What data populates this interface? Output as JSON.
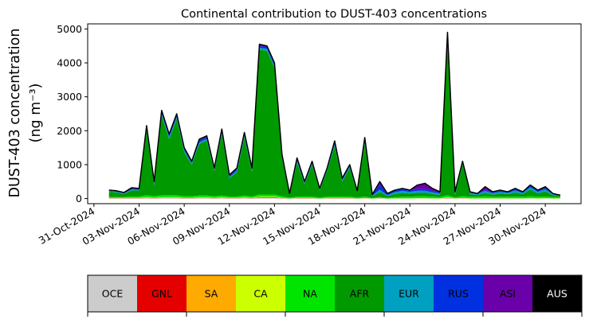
{
  "chart_data": {
    "type": "area",
    "title": "Continental contribution to DUST-403 concentrations",
    "ylabel_line1": "DUST-403 concentration",
    "ylabel_line2": "(ng m⁻³)",
    "xlabel": "",
    "ylim": [
      -150,
      5150
    ],
    "xlim": [
      "2024-10-30T14:00",
      "2024-12-02T09:00"
    ],
    "grid": false,
    "y_ticks": [
      0,
      1000,
      2000,
      3000,
      4000,
      5000
    ],
    "x_ticks": [
      "31-Oct-2024",
      "03-Nov-2024",
      "06-Nov-2024",
      "09-Nov-2024",
      "12-Nov-2024",
      "15-Nov-2024",
      "18-Nov-2024",
      "21-Nov-2024",
      "24-Nov-2024",
      "27-Nov-2024",
      "30-Nov-2024"
    ],
    "x": [
      "2024-11-01T00:00",
      "2024-11-01T12:00",
      "2024-11-02T00:00",
      "2024-11-02T12:00",
      "2024-11-03T00:00",
      "2024-11-03T12:00",
      "2024-11-04T00:00",
      "2024-11-04T12:00",
      "2024-11-05T00:00",
      "2024-11-05T12:00",
      "2024-11-06T00:00",
      "2024-11-06T12:00",
      "2024-11-07T00:00",
      "2024-11-07T12:00",
      "2024-11-08T00:00",
      "2024-11-08T12:00",
      "2024-11-09T00:00",
      "2024-11-09T12:00",
      "2024-11-10T00:00",
      "2024-11-10T12:00",
      "2024-11-11T00:00",
      "2024-11-11T12:00",
      "2024-11-12T00:00",
      "2024-11-12T12:00",
      "2024-11-13T00:00",
      "2024-11-13T12:00",
      "2024-11-14T00:00",
      "2024-11-14T12:00",
      "2024-11-15T00:00",
      "2024-11-15T12:00",
      "2024-11-16T00:00",
      "2024-11-16T12:00",
      "2024-11-17T00:00",
      "2024-11-17T12:00",
      "2024-11-18T00:00",
      "2024-11-18T12:00",
      "2024-11-19T00:00",
      "2024-11-19T12:00",
      "2024-11-20T00:00",
      "2024-11-20T12:00",
      "2024-11-21T00:00",
      "2024-11-21T12:00",
      "2024-11-22T00:00",
      "2024-11-22T12:00",
      "2024-11-23T00:00",
      "2024-11-23T12:00",
      "2024-11-24T00:00",
      "2024-11-24T12:00",
      "2024-11-25T00:00",
      "2024-11-25T12:00",
      "2024-11-26T00:00",
      "2024-11-26T12:00",
      "2024-11-27T00:00",
      "2024-11-27T12:00",
      "2024-11-28T00:00",
      "2024-11-28T12:00",
      "2024-11-29T00:00",
      "2024-11-29T12:00",
      "2024-11-30T00:00",
      "2024-11-30T12:00",
      "2024-12-01T00:00"
    ],
    "total": [
      250,
      230,
      180,
      320,
      300,
      2150,
      500,
      2600,
      1900,
      2500,
      1500,
      1100,
      1750,
      1850,
      900,
      2050,
      700,
      900,
      1950,
      900,
      4550,
      4500,
      4000,
      1300,
      150,
      1200,
      500,
      1100,
      300,
      900,
      1700,
      600,
      1000,
      230,
      1800,
      120,
      500,
      150,
      250,
      300,
      250,
      400,
      450,
      300,
      200,
      4900,
      200,
      1100,
      200,
      150,
      350,
      200,
      250,
      200,
      300,
      200,
      400,
      250,
      350,
      150,
      100
    ],
    "series": [
      {
        "name": "OCE",
        "color": "#cccccc",
        "values": [
          5,
          5,
          5,
          5,
          5,
          10,
          5,
          10,
          10,
          10,
          5,
          5,
          10,
          10,
          5,
          10,
          5,
          5,
          10,
          5,
          15,
          15,
          15,
          5,
          0,
          5,
          5,
          5,
          0,
          5,
          5,
          5,
          5,
          0,
          5,
          0,
          5,
          0,
          0,
          0,
          0,
          5,
          5,
          0,
          0,
          10,
          0,
          5,
          0,
          0,
          0,
          0,
          0,
          0,
          0,
          0,
          5,
          0,
          5,
          0,
          0
        ]
      },
      {
        "name": "GNL",
        "color": "#e50000",
        "values": [
          5,
          5,
          5,
          5,
          5,
          10,
          5,
          10,
          10,
          10,
          5,
          5,
          10,
          10,
          5,
          10,
          5,
          5,
          10,
          5,
          15,
          15,
          15,
          5,
          0,
          5,
          5,
          5,
          0,
          5,
          5,
          5,
          5,
          0,
          5,
          0,
          5,
          0,
          0,
          0,
          0,
          0,
          0,
          0,
          0,
          10,
          0,
          5,
          0,
          0,
          0,
          0,
          0,
          0,
          0,
          0,
          0,
          0,
          0,
          0,
          0
        ]
      },
      {
        "name": "SA",
        "color": "#ffaa00",
        "values": [
          5,
          5,
          5,
          5,
          5,
          10,
          5,
          10,
          10,
          10,
          5,
          5,
          10,
          10,
          5,
          10,
          5,
          5,
          10,
          5,
          15,
          15,
          15,
          5,
          0,
          5,
          5,
          5,
          0,
          5,
          5,
          5,
          5,
          0,
          5,
          0,
          5,
          0,
          0,
          0,
          0,
          0,
          0,
          0,
          0,
          10,
          0,
          5,
          0,
          0,
          0,
          0,
          0,
          0,
          0,
          0,
          0,
          0,
          0,
          0,
          0
        ]
      },
      {
        "name": "CA",
        "color": "#ccff00",
        "values": [
          5,
          5,
          5,
          5,
          5,
          10,
          5,
          10,
          10,
          10,
          5,
          5,
          10,
          10,
          5,
          10,
          5,
          5,
          10,
          5,
          15,
          15,
          15,
          5,
          0,
          5,
          5,
          5,
          0,
          5,
          5,
          5,
          5,
          0,
          5,
          0,
          5,
          0,
          5,
          5,
          5,
          5,
          5,
          5,
          5,
          10,
          5,
          5,
          5,
          5,
          5,
          5,
          5,
          5,
          5,
          5,
          5,
          5,
          5,
          5,
          5
        ]
      },
      {
        "name": "NA",
        "color": "#00e500",
        "values": [
          30,
          30,
          30,
          40,
          40,
          60,
          50,
          60,
          60,
          60,
          50,
          50,
          50,
          50,
          50,
          50,
          40,
          40,
          50,
          40,
          60,
          60,
          60,
          50,
          30,
          40,
          40,
          40,
          30,
          40,
          40,
          40,
          40,
          30,
          40,
          20,
          30,
          20,
          40,
          50,
          50,
          60,
          60,
          50,
          40,
          60,
          40,
          50,
          50,
          50,
          60,
          50,
          50,
          50,
          50,
          50,
          60,
          50,
          50,
          40,
          40
        ]
      },
      {
        "name": "AFR",
        "color": "#009900",
        "values": [
          150,
          130,
          90,
          180,
          170,
          1900,
          320,
          2350,
          1640,
          2250,
          1300,
          930,
          1520,
          1620,
          740,
          1810,
          540,
          720,
          1700,
          730,
          4270,
          4230,
          3730,
          1120,
          80,
          1000,
          370,
          930,
          210,
          760,
          1500,
          450,
          840,
          150,
          1550,
          50,
          150,
          50,
          90,
          110,
          90,
          100,
          100,
          80,
          60,
          4600,
          80,
          950,
          70,
          50,
          100,
          60,
          90,
          70,
          120,
          70,
          200,
          90,
          150,
          50,
          30
        ]
      },
      {
        "name": "EUR",
        "color": "#00a0c0",
        "values": [
          20,
          20,
          15,
          30,
          25,
          60,
          40,
          60,
          60,
          60,
          50,
          40,
          50,
          50,
          30,
          50,
          30,
          40,
          60,
          40,
          60,
          60,
          60,
          40,
          15,
          50,
          30,
          40,
          20,
          30,
          40,
          30,
          40,
          20,
          50,
          20,
          60,
          30,
          50,
          60,
          50,
          60,
          60,
          50,
          40,
          60,
          40,
          40,
          40,
          30,
          60,
          40,
          50,
          40,
          60,
          40,
          60,
          50,
          60,
          30,
          20
        ]
      },
      {
        "name": "RUS",
        "color": "#0030e0",
        "values": [
          15,
          15,
          10,
          25,
          20,
          50,
          40,
          50,
          50,
          50,
          40,
          30,
          50,
          50,
          30,
          50,
          40,
          40,
          60,
          40,
          50,
          50,
          50,
          40,
          10,
          50,
          20,
          40,
          20,
          30,
          60,
          30,
          40,
          15,
          90,
          15,
          150,
          30,
          40,
          40,
          30,
          50,
          50,
          40,
          30,
          80,
          40,
          30,
          20,
          10,
          30,
          20,
          30,
          20,
          30,
          20,
          40,
          30,
          40,
          15,
          5
        ]
      },
      {
        "name": "ASI",
        "color": "#6a00aa",
        "values": [
          10,
          10,
          10,
          20,
          15,
          30,
          25,
          30,
          30,
          30,
          35,
          25,
          30,
          30,
          25,
          40,
          25,
          35,
          30,
          25,
          40,
          20,
          20,
          20,
          10,
          30,
          15,
          20,
          15,
          20,
          40,
          25,
          15,
          10,
          45,
          10,
          85,
          15,
          20,
          30,
          20,
          120,
          170,
          70,
          25,
          50,
          35,
          10,
          10,
          5,
          90,
          20,
          20,
          10,
          30,
          10,
          25,
          20,
          35,
          5,
          0
        ]
      },
      {
        "name": "AUS",
        "color": "#000000",
        "values": [
          5,
          5,
          5,
          5,
          5,
          10,
          5,
          10,
          10,
          10,
          5,
          5,
          10,
          10,
          5,
          10,
          5,
          5,
          10,
          5,
          15,
          15,
          15,
          5,
          0,
          5,
          5,
          5,
          0,
          5,
          5,
          5,
          5,
          0,
          5,
          0,
          5,
          0,
          0,
          0,
          0,
          0,
          0,
          0,
          0,
          10,
          0,
          0,
          0,
          0,
          0,
          0,
          0,
          0,
          0,
          0,
          0,
          0,
          0,
          0,
          0
        ]
      }
    ]
  }
}
